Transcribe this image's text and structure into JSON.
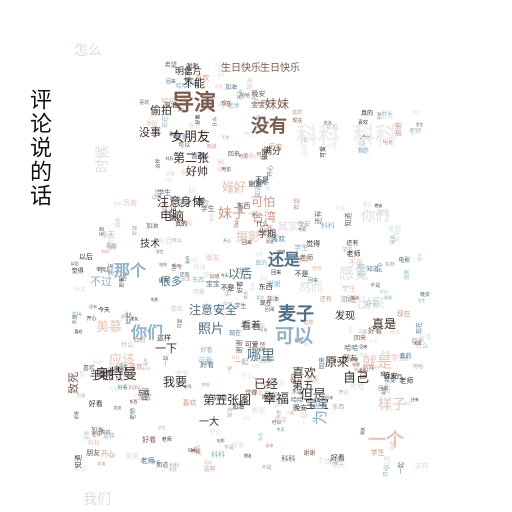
{
  "title": "评论说的话",
  "colors": {
    "dark": "#3a2d2a",
    "brown": "#7a5a4f",
    "tan": "#c79a86",
    "blue_dark": "#4f6f86",
    "blue": "#8fb1c6",
    "peach": "#e7c2b3",
    "faint": "#d9dfe4",
    "faint2": "#eeeeee"
  },
  "words": [
    {
      "id": "w1",
      "text": "导演",
      "color": "brown"
    },
    {
      "id": "w2",
      "text": "没有",
      "color": "brown"
    },
    {
      "id": "w3",
      "text": "女朋友",
      "color": "dark"
    },
    {
      "id": "w4",
      "text": "第二张",
      "color": "dark"
    },
    {
      "id": "w5",
      "text": "好帅",
      "color": "dark"
    },
    {
      "id": "w6",
      "text": "不能",
      "color": "dark"
    },
    {
      "id": "w7",
      "text": "偷拍",
      "color": "dark"
    },
    {
      "id": "w8",
      "text": "没事",
      "color": "dark"
    },
    {
      "id": "w9",
      "text": "妹妹",
      "color": "brown"
    },
    {
      "id": "w10",
      "text": "注意",
      "color": "dark"
    },
    {
      "id": "w11",
      "text": "身体",
      "color": "dark"
    },
    {
      "id": "w12",
      "text": "电脑",
      "color": "dark"
    },
    {
      "id": "w13",
      "text": "妹子",
      "color": "tan"
    },
    {
      "id": "w14",
      "text": "好好",
      "color": "peach"
    },
    {
      "id": "w15",
      "text": "可怕",
      "color": "tan"
    },
    {
      "id": "w16",
      "text": "台湾",
      "color": "tan"
    },
    {
      "id": "w17",
      "text": "还是",
      "color": "blue_dark"
    },
    {
      "id": "w18",
      "text": "那个",
      "color": "blue"
    },
    {
      "id": "w19",
      "text": "以后",
      "color": "blue_dark"
    },
    {
      "id": "w20",
      "text": "感觉",
      "color": "faint"
    },
    {
      "id": "w21",
      "text": "麦子",
      "color": "blue_dark"
    },
    {
      "id": "w22",
      "text": "可以",
      "color": "blue"
    },
    {
      "id": "w23",
      "text": "你们",
      "color": "blue"
    },
    {
      "id": "w24",
      "text": "照片",
      "color": "blue_dark"
    },
    {
      "id": "w25",
      "text": "注意安全",
      "color": "blue_dark"
    },
    {
      "id": "w26",
      "text": "一下",
      "color": "dark"
    },
    {
      "id": "w27",
      "text": "哪里",
      "color": "blue_dark"
    },
    {
      "id": "w28",
      "text": "就是",
      "color": "peach"
    },
    {
      "id": "w29",
      "text": "原来",
      "color": "dark"
    },
    {
      "id": "w30",
      "text": "自己",
      "color": "dark"
    },
    {
      "id": "w31",
      "text": "奥特曼",
      "color": "dark"
    },
    {
      "id": "w32",
      "text": "手机",
      "color": "dark"
    },
    {
      "id": "w33",
      "text": "应该",
      "color": "peach"
    },
    {
      "id": "w34",
      "text": "美慕",
      "color": "peach"
    },
    {
      "id": "w35",
      "text": "我要",
      "color": "dark"
    },
    {
      "id": "w36",
      "text": "第五张图",
      "color": "dark"
    },
    {
      "id": "w37",
      "text": "幸福",
      "color": "dark"
    },
    {
      "id": "w38",
      "text": "但是",
      "color": "dark"
    },
    {
      "id": "w39",
      "text": "已经",
      "color": "dark"
    },
    {
      "id": "w40",
      "text": "喜欢",
      "color": "dark"
    },
    {
      "id": "w41",
      "text": "第五",
      "color": "dark"
    },
    {
      "id": "w42",
      "text": "宝宝",
      "color": "dark"
    },
    {
      "id": "w43",
      "text": "样子",
      "color": "peach"
    },
    {
      "id": "w44",
      "text": "一个",
      "color": "peach"
    },
    {
      "id": "w45",
      "text": "真是",
      "color": "dark"
    },
    {
      "id": "w46",
      "text": "出来",
      "color": "faint"
    },
    {
      "id": "w47",
      "text": "然而",
      "color": "faint"
    },
    {
      "id": "w48",
      "text": "科科",
      "color": "faint2"
    },
    {
      "id": "w49",
      "text": "科科",
      "color": "faint2"
    },
    {
      "id": "w50",
      "text": "时候",
      "color": "faint"
    },
    {
      "id": "w51",
      "text": "摄影",
      "color": "peach"
    },
    {
      "id": "w52",
      "text": "技术",
      "color": "dark"
    },
    {
      "id": "w53",
      "text": "很多",
      "color": "blue_dark"
    },
    {
      "id": "w54",
      "text": "我们",
      "color": "faint"
    },
    {
      "id": "w55",
      "text": "生日快乐",
      "color": "brown"
    },
    {
      "id": "w56",
      "text": "生日快乐",
      "color": "brown"
    },
    {
      "id": "w57",
      "text": "明信片",
      "color": "dark"
    },
    {
      "id": "w58",
      "text": "学期",
      "color": "dark"
    },
    {
      "id": "w59",
      "text": "其实",
      "color": "faint"
    },
    {
      "id": "w60",
      "text": "不过",
      "color": "blue"
    },
    {
      "id": "w61",
      "text": "致死",
      "color": "brown"
    },
    {
      "id": "w62",
      "text": "发现",
      "color": "dark"
    },
    {
      "id": "w63",
      "text": "为啥",
      "color": "blue"
    },
    {
      "id": "w64",
      "text": "看着",
      "color": "dark"
    },
    {
      "id": "w65",
      "text": "满分",
      "color": "dark"
    },
    {
      "id": "w66",
      "text": "一大",
      "color": "dark"
    },
    {
      "id": "w67",
      "text": "怎么",
      "color": "faint"
    },
    {
      "id": "w68",
      "text": "你们",
      "color": "faint"
    }
  ]
}
